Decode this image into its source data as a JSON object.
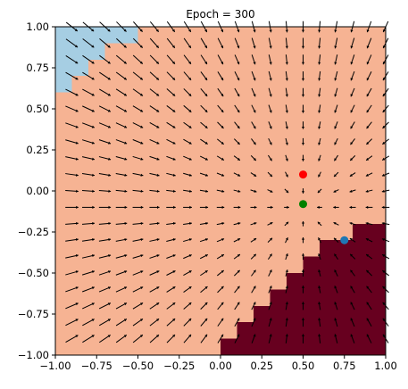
{
  "title": "Epoch = 300",
  "chart_data": {
    "type": "heatmap",
    "title": "Epoch = 300",
    "xlabel": "",
    "ylabel": "",
    "xlim": [
      -1.0,
      1.0
    ],
    "ylim": [
      -1.0,
      1.0
    ],
    "grid": false,
    "x_ticks": [
      -1.0,
      -0.75,
      -0.5,
      -0.25,
      0.0,
      0.25,
      0.5,
      0.75,
      1.0
    ],
    "y_ticks": [
      -1.0,
      -0.75,
      -0.5,
      -0.25,
      0.0,
      0.25,
      0.5,
      0.75,
      1.0
    ],
    "x_tick_labels": [
      "−1.00",
      "−0.75",
      "−0.50",
      "−0.25",
      "0.00",
      "0.25",
      "0.50",
      "0.75",
      "1.00"
    ],
    "y_tick_labels": [
      "−1.00",
      "−0.75",
      "−0.50",
      "−0.25",
      "0.00",
      "0.25",
      "0.50",
      "0.75",
      "1.00"
    ],
    "regions": {
      "grid_cells": 20,
      "cell_size": 0.1,
      "colors": {
        "background": "#f6b393",
        "light_blue": "#a6cee3",
        "dark_red": "#67001f"
      },
      "light_blue_rows": [
        {
          "y_from": 0.9,
          "y_to": 1.0,
          "x_to": -0.5
        },
        {
          "y_from": 0.8,
          "y_to": 0.9,
          "x_to": -0.7
        },
        {
          "y_from": 0.7,
          "y_to": 0.8,
          "x_to": -0.8
        },
        {
          "y_from": 0.6,
          "y_to": 0.7,
          "x_to": -0.9
        }
      ],
      "dark_red_rows": [
        {
          "y_from": -0.3,
          "y_to": -0.2,
          "x_from": 0.8
        },
        {
          "y_from": -0.4,
          "y_to": -0.3,
          "x_from": 0.6
        },
        {
          "y_from": -0.5,
          "y_to": -0.4,
          "x_from": 0.5
        },
        {
          "y_from": -0.6,
          "y_to": -0.5,
          "x_from": 0.4
        },
        {
          "y_from": -0.7,
          "y_to": -0.6,
          "x_from": 0.3
        },
        {
          "y_from": -0.8,
          "y_to": -0.7,
          "x_from": 0.2
        },
        {
          "y_from": -0.9,
          "y_to": -0.8,
          "x_from": 0.1
        },
        {
          "y_from": -1.0,
          "y_to": -0.9,
          "x_from": 0.0
        }
      ]
    },
    "vector_field": {
      "color": "#000000",
      "grid_start": -0.9,
      "grid_step": 0.1,
      "grid_count": 20,
      "direction_target": [
        0.5,
        -0.1
      ]
    },
    "points": [
      {
        "x": 0.5,
        "y": 0.1,
        "color": "#ff0000"
      },
      {
        "x": 0.5,
        "y": -0.08,
        "color": "#008000"
      },
      {
        "x": 0.75,
        "y": -0.3,
        "color": "#1f77b4"
      }
    ]
  }
}
